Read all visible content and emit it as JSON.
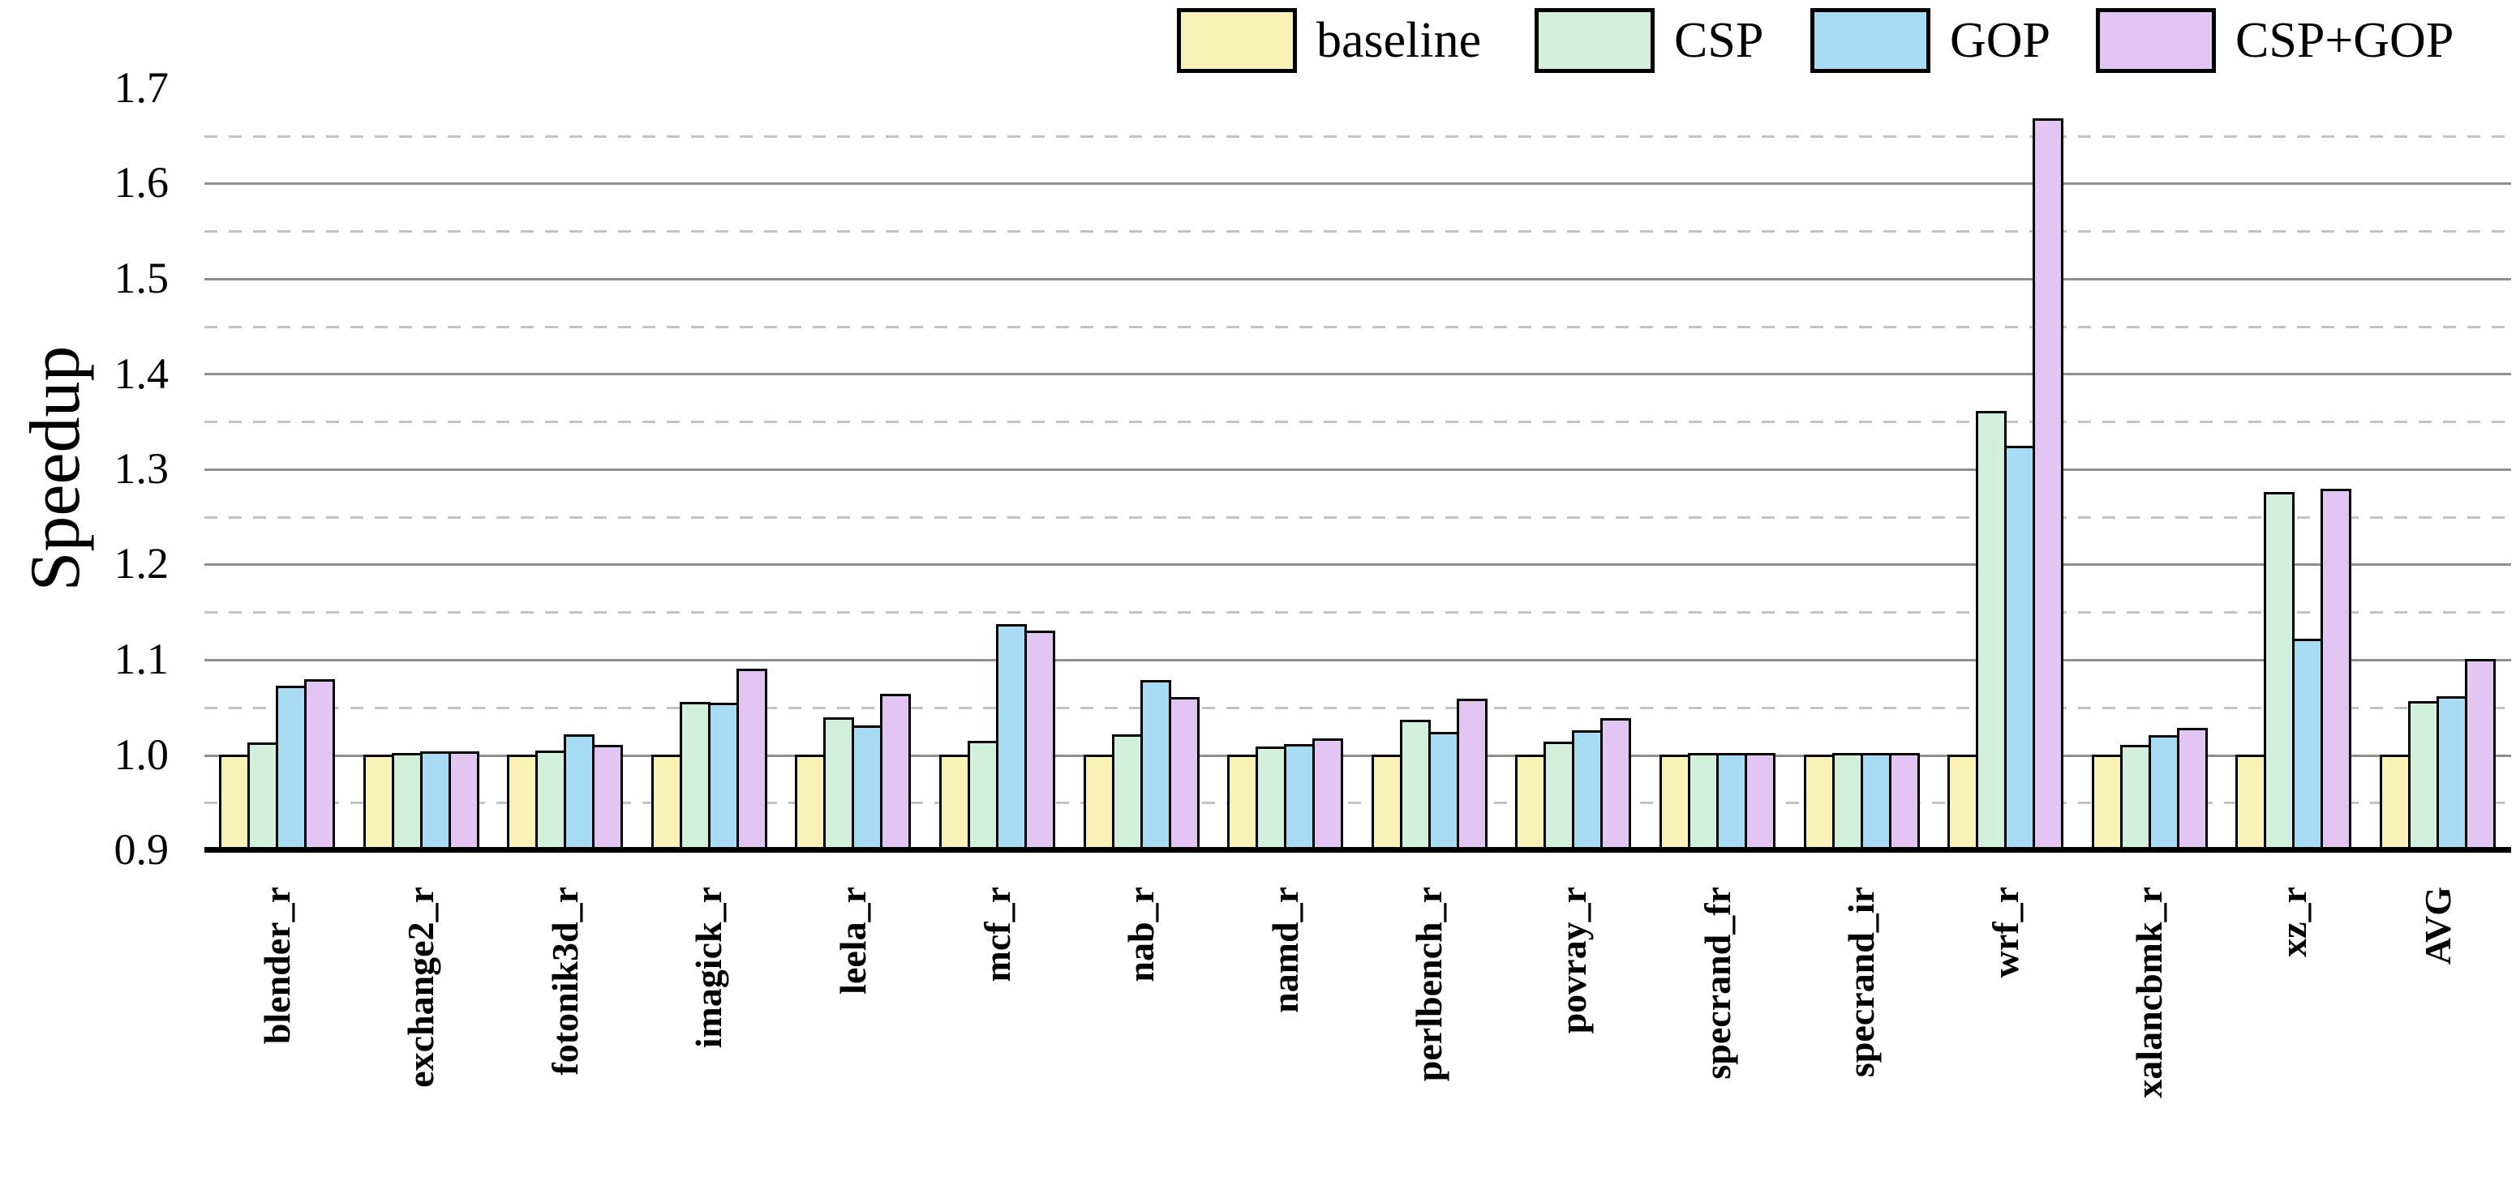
{
  "ylabel": "Speedup",
  "legend": [
    {
      "label": "baseline",
      "color": "#F9F2B6"
    },
    {
      "label": "CSP",
      "color": "#D3F0DC"
    },
    {
      "label": "GOP",
      "color": "#A8DCF5"
    },
    {
      "label": "CSP+GOP",
      "color": "#E2C5F3"
    }
  ],
  "chart_data": {
    "type": "bar",
    "title": "",
    "xlabel": "",
    "ylabel": "Speedup",
    "ylim": [
      0.9,
      1.7
    ],
    "ytick_step": 0.1,
    "yticks": [
      "0.9",
      "1.0",
      "1.1",
      "1.2",
      "1.3",
      "1.4",
      "1.5",
      "1.6",
      "1.7"
    ],
    "minor_gridlines_dashed_every": 0.05,
    "grid": "horizontal, solid at 0.1 steps, dashed at 0.05 steps",
    "legend_position": "top",
    "categories": [
      "blender_r",
      "exchange2_r",
      "fotonik3d_r",
      "imagick_r",
      "leela_r",
      "mcf_r",
      "nab_r",
      "namd_r",
      "perlbench_r",
      "povray_r",
      "specrand_fr",
      "specrand_ir",
      "wrf_r",
      "xalancbmk_r",
      "xz_r",
      "AVG"
    ],
    "series": [
      {
        "name": "baseline",
        "color": "#F9F2B6",
        "values": [
          1.0,
          1.0,
          1.0,
          1.0,
          1.0,
          1.0,
          1.0,
          1.0,
          1.0,
          1.0,
          1.0,
          1.0,
          1.0,
          1.0,
          1.0,
          1.0
        ]
      },
      {
        "name": "CSP",
        "color": "#D3F0DC",
        "values": [
          1.012,
          1.001,
          1.004,
          1.055,
          1.039,
          1.014,
          1.021,
          1.008,
          1.036,
          1.013,
          1.001,
          1.001,
          1.36,
          1.01,
          1.275,
          1.056
        ]
      },
      {
        "name": "GOP",
        "color": "#A8DCF5",
        "values": [
          1.072,
          1.003,
          1.021,
          1.054,
          1.03,
          1.137,
          1.078,
          1.011,
          1.023,
          1.025,
          1.001,
          1.001,
          1.324,
          1.02,
          1.121,
          1.061
        ]
      },
      {
        "name": "CSP+GOP",
        "color": "#E2C5F3",
        "values": [
          1.079,
          1.003,
          1.01,
          1.09,
          1.063,
          1.13,
          1.06,
          1.017,
          1.058,
          1.038,
          1.001,
          1.001,
          1.668,
          1.028,
          1.279,
          1.1
        ]
      }
    ]
  }
}
